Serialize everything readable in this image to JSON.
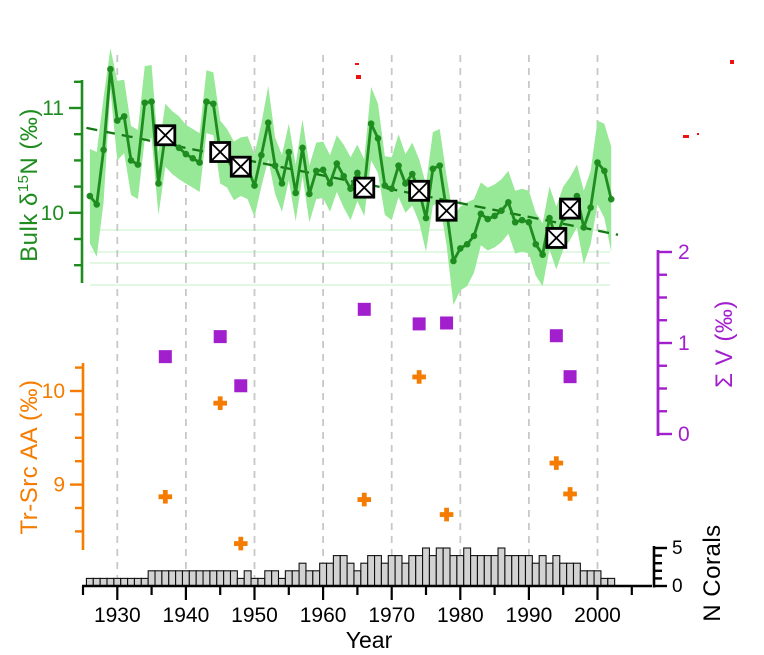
{
  "figure": {
    "background": "#ffffff",
    "xlabel": "Year",
    "x_axis": {
      "major_ticks": [
        1930,
        1940,
        1950,
        1960,
        1970,
        1980,
        1990,
        2000
      ],
      "minor_ticks": [
        1925,
        1935,
        1945,
        1955,
        1965,
        1975,
        1985,
        1995,
        2005
      ],
      "labels": [
        "1930",
        "1940",
        "1950",
        "1960",
        "1970",
        "1980",
        "1990",
        "2000"
      ],
      "range_years": [
        1925,
        2005
      ]
    },
    "bulk_axis": {
      "title_prefix": "Bulk δ",
      "title_sup": "15",
      "title_suffix": "N (‰)",
      "color": "#1e8c1e",
      "major_ticks": [
        11,
        10
      ],
      "labels": [
        "11",
        "10"
      ]
    },
    "trsrc_axis": {
      "title": "Tr-Src AA (‰)",
      "color": "#f57c00",
      "major_ticks": [
        10,
        9
      ],
      "labels": [
        "10",
        "9"
      ]
    },
    "sigmav_axis": {
      "title": "Σ V (‰)",
      "color": "#a21fce",
      "major_ticks": [
        2,
        1,
        0
      ],
      "labels": [
        "2",
        "1",
        "0"
      ]
    },
    "ncorals_axis": {
      "title": "N Corals",
      "color": "#000000",
      "major_ticks": [
        5,
        0
      ],
      "labels": [
        "5",
        "0"
      ]
    },
    "gridline_color": "#c8c8c8",
    "band_color": "#97e897",
    "bar_fill": "#d2d2d2",
    "artifact_color": "#ee1111",
    "artifact_marks": [
      [
        355,
        63,
        4,
        2
      ],
      [
        356,
        75,
        5,
        4
      ],
      [
        683,
        135,
        6,
        3
      ],
      [
        697,
        133,
        2,
        2
      ],
      [
        730,
        60,
        4,
        4
      ]
    ]
  },
  "chart_data": [
    {
      "type": "line",
      "name": "Bulk δ15N",
      "ylabel": "Bulk δ15N (‰)",
      "line_color": "#1e8c1e",
      "yticks": [
        10,
        11
      ],
      "x": [
        1926,
        1927,
        1928,
        1929,
        1930,
        1931,
        1932,
        1933,
        1934,
        1935,
        1936,
        1937,
        1938,
        1939,
        1940,
        1941,
        1942,
        1943,
        1944,
        1945,
        1946,
        1947,
        1948,
        1949,
        1950,
        1951,
        1952,
        1953,
        1954,
        1955,
        1956,
        1957,
        1958,
        1959,
        1960,
        1961,
        1962,
        1963,
        1964,
        1965,
        1966,
        1967,
        1968,
        1969,
        1970,
        1971,
        1972,
        1973,
        1974,
        1975,
        1976,
        1977,
        1978,
        1979,
        1980,
        1981,
        1982,
        1983,
        1984,
        1985,
        1986,
        1987,
        1988,
        1989,
        1990,
        1991,
        1992,
        1993,
        1994,
        1995,
        1996,
        1997,
        1998,
        1999,
        2000,
        2001,
        2002
      ],
      "values": [
        10.16,
        10.08,
        10.6,
        11.37,
        10.88,
        10.92,
        10.5,
        10.46,
        11.05,
        11.06,
        10.28,
        10.74,
        10.67,
        10.62,
        10.56,
        10.52,
        10.48,
        11.06,
        11.04,
        10.58,
        10.52,
        10.4,
        10.44,
        10.43,
        10.26,
        10.55,
        10.86,
        10.45,
        10.28,
        10.58,
        10.19,
        10.62,
        10.18,
        10.4,
        10.41,
        10.28,
        10.47,
        10.35,
        10.23,
        10.38,
        10.24,
        10.85,
        10.71,
        10.26,
        10.23,
        10.45,
        10.28,
        10.37,
        10.21,
        9.95,
        10.42,
        10.45,
        10.02,
        9.54,
        9.66,
        9.7,
        9.78,
        9.99,
        9.94,
        9.97,
        10.02,
        10.1,
        9.91,
        9.93,
        9.91,
        9.7,
        9.6,
        9.95,
        9.76,
        9.95,
        10.04,
        10.16,
        9.86,
        10.05,
        10.48,
        10.4,
        10.13
      ],
      "band_halfwidth": [
        0.45,
        0.5,
        0.5,
        0.2,
        0.38,
        0.35,
        0.33,
        0.33,
        0.35,
        0.35,
        0.3,
        0.3,
        0.3,
        0.3,
        0.28,
        0.28,
        0.28,
        0.3,
        0.3,
        0.3,
        0.28,
        0.28,
        0.28,
        0.3,
        0.3,
        0.3,
        0.35,
        0.27,
        0.27,
        0.27,
        0.27,
        0.27,
        0.27,
        0.27,
        0.27,
        0.27,
        0.27,
        0.3,
        0.3,
        0.27,
        0.27,
        0.35,
        0.33,
        0.28,
        0.3,
        0.3,
        0.28,
        0.3,
        0.3,
        0.32,
        0.35,
        0.35,
        0.33,
        0.42,
        0.4,
        0.4,
        0.35,
        0.3,
        0.3,
        0.3,
        0.3,
        0.3,
        0.3,
        0.3,
        0.3,
        0.3,
        0.3,
        0.3,
        0.3,
        0.3,
        0.3,
        0.3,
        0.35,
        0.35,
        0.4,
        0.45,
        0.5
      ],
      "trend_line": {
        "x": [
          1925.5,
          2003.0
        ],
        "y": [
          10.81,
          9.79
        ],
        "style": "dashed"
      },
      "boxed_years": [
        1937,
        1945,
        1948,
        1966,
        1974,
        1978,
        1994,
        1996
      ]
    },
    {
      "type": "scatter",
      "name": "Tr-Src AA",
      "ylabel": "Tr-Src AA (‰)",
      "marker": "plus",
      "color": "#f57c00",
      "yticks": [
        9,
        10
      ],
      "x": [
        1937,
        1945,
        1948,
        1966,
        1974,
        1978,
        1994,
        1996
      ],
      "y": [
        8.87,
        9.87,
        8.37,
        8.84,
        10.15,
        8.68,
        9.23,
        8.9
      ]
    },
    {
      "type": "scatter",
      "name": "Σ V",
      "ylabel": "Σ V (‰)",
      "marker": "square",
      "color": "#a21fce",
      "yticks": [
        0,
        1,
        2
      ],
      "ylim": [
        0,
        2
      ],
      "x": [
        1937,
        1945,
        1948,
        1966,
        1974,
        1978,
        1994,
        1996
      ],
      "y": [
        0.85,
        1.07,
        0.53,
        1.37,
        1.21,
        1.22,
        1.08,
        0.63
      ]
    },
    {
      "type": "bar",
      "name": "N Corals",
      "ylabel": "N Corals",
      "color": "#d2d2d2",
      "yticks": [
        0,
        5
      ],
      "ylim": [
        0,
        5
      ],
      "x": [
        1926,
        1927,
        1928,
        1929,
        1930,
        1931,
        1932,
        1933,
        1934,
        1935,
        1936,
        1937,
        1938,
        1939,
        1940,
        1941,
        1942,
        1943,
        1944,
        1945,
        1946,
        1947,
        1948,
        1949,
        1950,
        1951,
        1952,
        1953,
        1954,
        1955,
        1956,
        1957,
        1958,
        1959,
        1960,
        1961,
        1962,
        1963,
        1964,
        1965,
        1966,
        1967,
        1968,
        1969,
        1970,
        1971,
        1972,
        1973,
        1974,
        1975,
        1976,
        1977,
        1978,
        1979,
        1980,
        1981,
        1982,
        1983,
        1984,
        1985,
        1986,
        1987,
        1988,
        1989,
        1990,
        1991,
        1992,
        1993,
        1994,
        1995,
        1996,
        1997,
        1998,
        1999,
        2000,
        2001,
        2002
      ],
      "values": [
        1,
        1,
        1,
        1,
        1,
        1,
        1,
        1,
        1,
        2,
        2,
        2,
        2,
        2,
        2,
        2,
        2,
        2,
        2,
        2,
        2,
        2,
        1,
        2,
        1,
        1,
        2,
        2,
        1,
        2,
        2,
        3,
        2,
        2,
        3,
        3,
        4,
        4,
        3,
        2,
        3,
        4,
        4,
        3,
        4,
        4,
        3,
        4,
        4,
        5,
        4,
        5,
        5,
        4,
        4,
        5,
        4,
        4,
        4,
        4,
        5,
        4,
        4,
        4,
        4,
        3,
        4,
        3,
        4,
        3,
        3,
        3,
        2,
        2,
        2,
        1,
        1
      ]
    }
  ]
}
